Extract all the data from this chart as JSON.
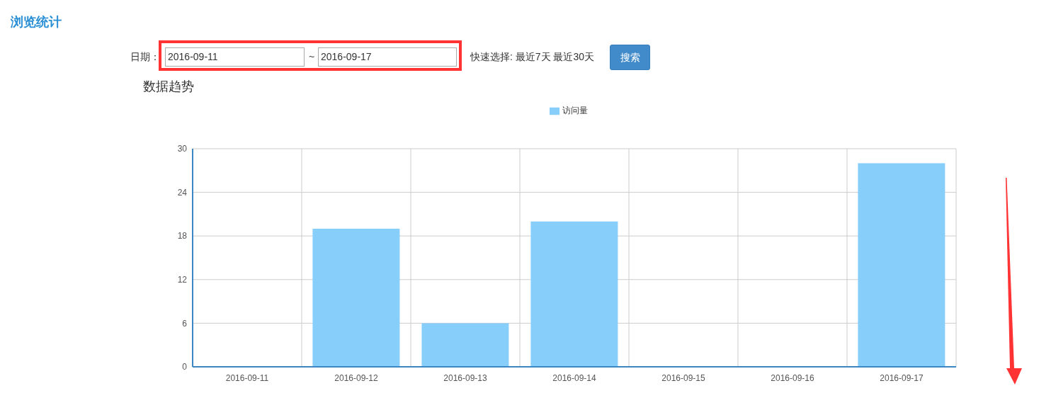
{
  "chart_data": {
    "type": "bar",
    "title": "数据趋势",
    "annotations": [
      "浏览统计",
      "日期：",
      "2016-09-11",
      "~",
      "2016-09-17",
      "快速选择: 最近7天 最近30天",
      "搜索"
    ],
    "categories": [
      "2016-09-11",
      "2016-09-12",
      "2016-09-13",
      "2016-09-14",
      "2016-09-15",
      "2016-09-16",
      "2016-09-17"
    ],
    "series": [
      {
        "name": "访问量",
        "color": "#87cefa",
        "values": [
          0,
          19,
          6,
          20,
          0,
          0,
          28
        ]
      }
    ],
    "ylim": [
      0,
      30
    ],
    "yticks": [
      0,
      6,
      12,
      18,
      24,
      30
    ],
    "grid": true,
    "legend": "top"
  }
}
